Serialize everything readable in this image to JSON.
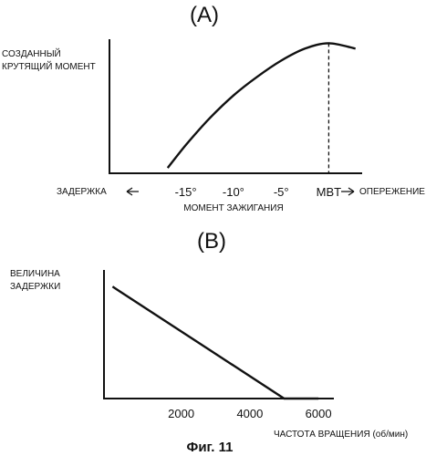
{
  "figure_caption": "Фиг. 11",
  "chart_data": [
    {
      "type": "line",
      "panel_label": "(A)",
      "ylabel_lines": [
        "СОЗДАННЫЙ",
        "КРУТЯЩИЙ МОМЕНТ"
      ],
      "xlabel": "МОМЕНТ ЗАЖИГАНИЯ",
      "left_annotation": "ЗАДЕРЖКА",
      "right_annotation": "ОПЕРЕЖЕНИЕ",
      "ticks": [
        {
          "value": -15,
          "label": "-15°"
        },
        {
          "value": -10,
          "label": "-10°"
        },
        {
          "value": -5,
          "label": "-5°"
        },
        {
          "value": 0,
          "label": "MBT"
        }
      ],
      "mbt_value": 0,
      "xlim": [
        -23,
        3.5
      ],
      "ylim": [
        0,
        1
      ],
      "grid": false,
      "series": [
        {
          "points": [
            [
              -16.9,
              0.04
            ],
            [
              -15,
              0.21
            ],
            [
              -12.5,
              0.41
            ],
            [
              -10,
              0.58
            ],
            [
              -7.5,
              0.72
            ],
            [
              -5,
              0.84
            ],
            [
              -2.5,
              0.93
            ],
            [
              0,
              0.97
            ],
            [
              2.8,
              0.93
            ]
          ]
        }
      ]
    },
    {
      "type": "line",
      "panel_label": "(B)",
      "ylabel_lines": [
        "ВЕЛИЧИНА",
        "ЗАДЕРЖКИ"
      ],
      "xlabel": "ЧАСТОТА ВРАЩЕНИЯ (об/мин)",
      "ticks": [
        {
          "value": 2000,
          "label": "2000"
        },
        {
          "value": 4000,
          "label": "4000"
        },
        {
          "value": 6000,
          "label": "6000"
        }
      ],
      "xlim": [
        -250,
        6450
      ],
      "ylim": [
        0,
        1
      ],
      "grid": false,
      "series": [
        {
          "points": [
            [
              0,
              0.87
            ],
            [
              5000,
              0
            ],
            [
              6000,
              0
            ]
          ]
        }
      ]
    }
  ]
}
